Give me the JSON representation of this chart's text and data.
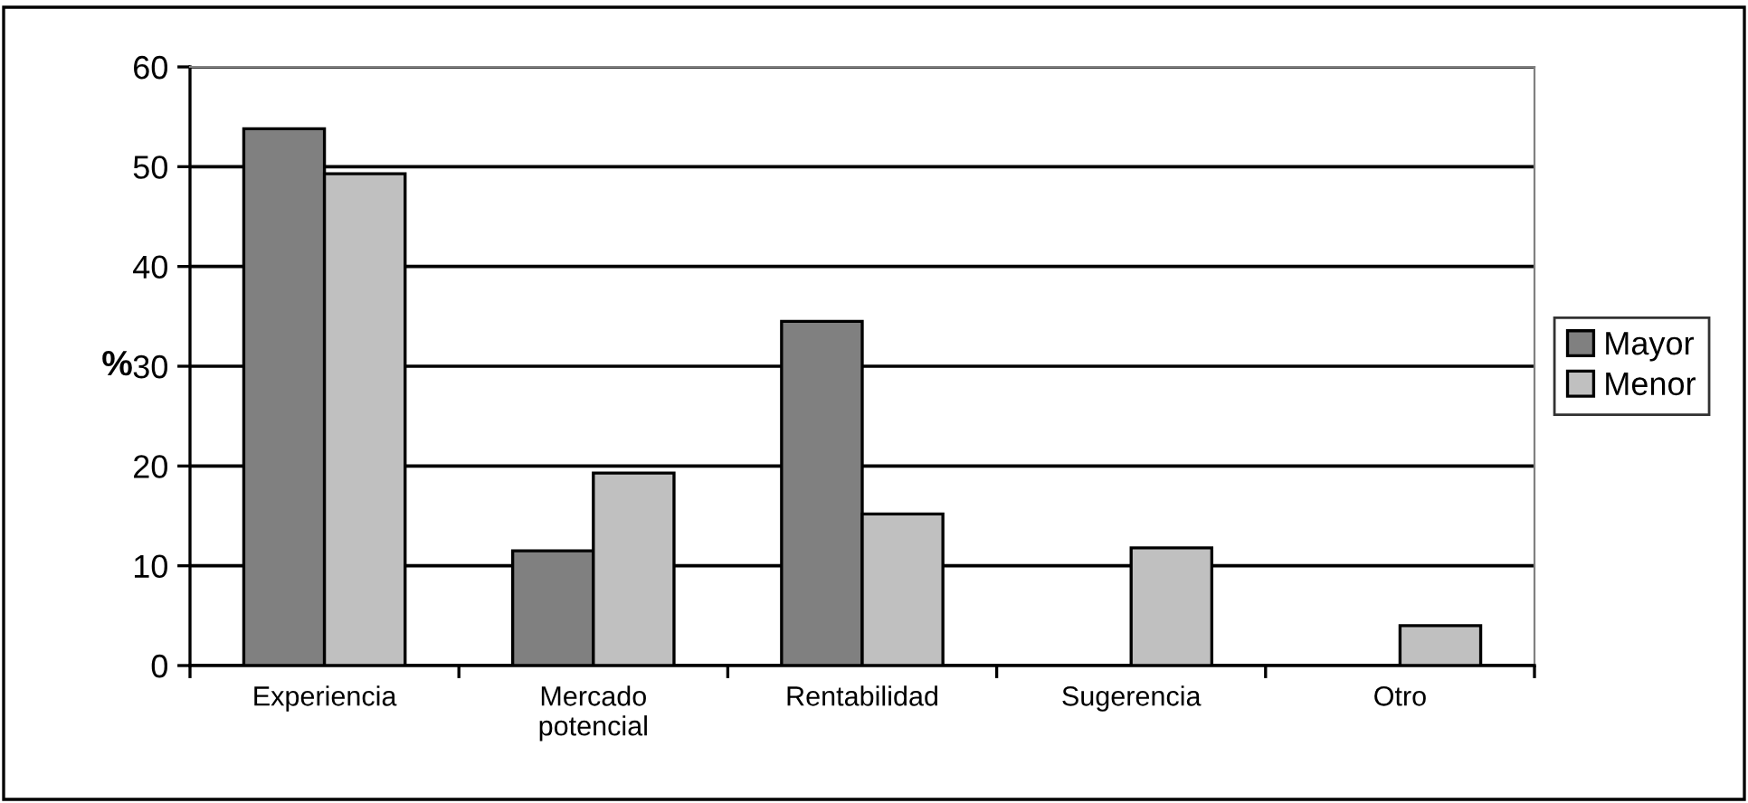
{
  "chart_data": {
    "type": "bar",
    "ylabel": "%",
    "categories": [
      "Experiencia",
      "Mercado\npotencial",
      "Rentabilidad",
      "Sugerencia",
      "Otro"
    ],
    "series": [
      {
        "name": "Mayor",
        "color": "#808080",
        "values": [
          53.8,
          11.5,
          34.5,
          null,
          null
        ]
      },
      {
        "name": "Menor",
        "color": "#c0c0c0",
        "values": [
          49.3,
          19.3,
          15.2,
          11.8,
          4.0
        ]
      }
    ],
    "ylim": [
      0,
      60
    ],
    "yticks": [
      0,
      10,
      20,
      30,
      40,
      50,
      60
    ],
    "grid": "y",
    "legend": "right"
  }
}
